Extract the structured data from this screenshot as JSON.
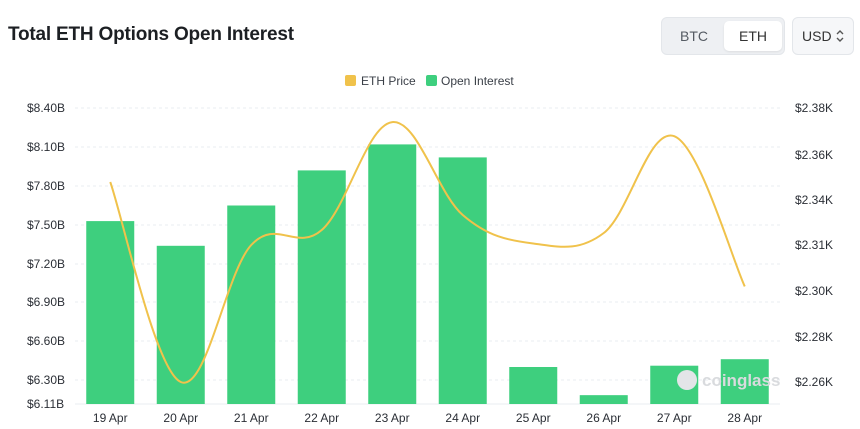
{
  "header": {
    "title": "Total ETH Options Open Interest",
    "toggle": [
      "BTC",
      "ETH"
    ],
    "currency": "USD"
  },
  "colors": {
    "bar": "#3ecf7e",
    "line": "#f0c24b",
    "grid": "#e9ecf0"
  },
  "watermark": "coinglass",
  "chart_data": {
    "type": "bar",
    "categories": [
      "19 Apr",
      "20 Apr",
      "21 Apr",
      "22 Apr",
      "23 Apr",
      "24 Apr",
      "25 Apr",
      "26 Apr",
      "27 Apr",
      "28 Apr"
    ],
    "series": [
      {
        "name": "Open Interest",
        "type": "bar",
        "axis": "left",
        "values": [
          7.53,
          7.34,
          7.65,
          7.92,
          8.12,
          8.02,
          6.4,
          6.18,
          6.41,
          6.46
        ]
      },
      {
        "name": "ETH Price",
        "type": "line",
        "axis": "right",
        "values": [
          2.348,
          2.26,
          2.31,
          2.32,
          2.374,
          2.33,
          2.311,
          2.318,
          2.368,
          2.301
        ]
      }
    ],
    "legend": [
      "ETH Price",
      "Open Interest"
    ],
    "legend_position": "top-center",
    "y_left": {
      "ticks": [
        "$8.40B",
        "$8.10B",
        "$7.80B",
        "$7.50B",
        "$7.20B",
        "$6.90B",
        "$6.60B",
        "$6.30B",
        "$6.11B"
      ],
      "range": [
        6.11,
        8.4
      ]
    },
    "y_right": {
      "ticks": [
        "$2.38K",
        "$2.36K",
        "$2.34K",
        "$2.31K",
        "$2.30K",
        "$2.28K",
        "$2.26K"
      ],
      "range": [
        2.24,
        2.38
      ]
    },
    "grid": true
  }
}
